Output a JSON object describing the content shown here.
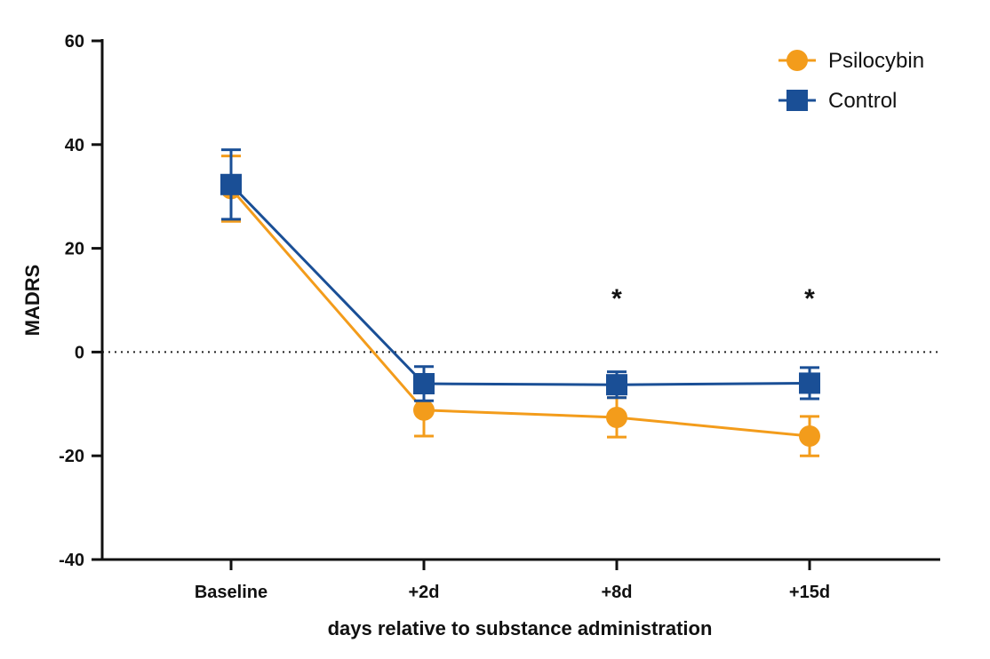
{
  "chart_data": {
    "type": "line",
    "xlabel": "days relative to substance administration",
    "ylabel": "MADRS",
    "categories": [
      "Baseline",
      "+2d",
      "+8d",
      "+15d"
    ],
    "ylim": [
      -40,
      60
    ],
    "yticks": [
      60,
      40,
      20,
      0,
      -20,
      -40
    ],
    "ytick_labels": [
      "60",
      "40",
      "20",
      "0",
      "-20",
      "-40"
    ],
    "reference_line": {
      "y": 0,
      "style": "dotted"
    },
    "legend_position": "top-right",
    "significance": [
      {
        "category": "+8d",
        "label": "*"
      },
      {
        "category": "+15d",
        "label": "*"
      }
    ],
    "series": [
      {
        "name": "Psilocybin",
        "color": "#F39C1B",
        "marker": "circle",
        "values": [
          31.5,
          -11.2,
          -12.6,
          -16.2
        ],
        "error": [
          6.3,
          5.0,
          3.8,
          3.8
        ]
      },
      {
        "name": "Control",
        "color": "#1A4F96",
        "marker": "square",
        "values": [
          32.3,
          -6.1,
          -6.3,
          -6.0
        ],
        "error": [
          6.7,
          3.3,
          2.5,
          3.0
        ]
      }
    ]
  }
}
